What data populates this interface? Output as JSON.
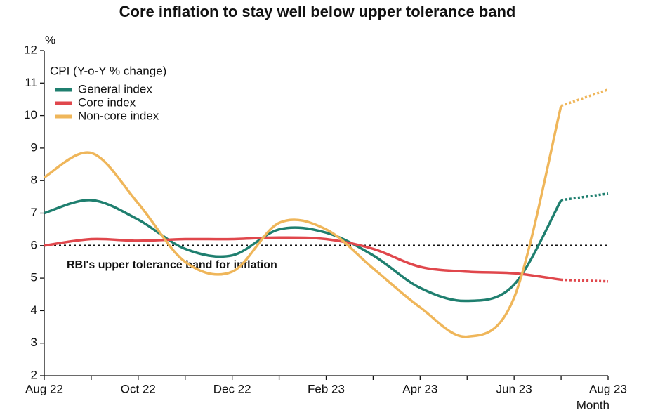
{
  "chart_data": {
    "type": "line",
    "title": "Core inflation to stay well below upper tolerance band",
    "y_label": "%",
    "x_label": "Month",
    "legend_title": "CPI (Y-o-Y % change)",
    "legend_position": "upper left",
    "categories": [
      "Aug 22",
      null,
      "Oct 22",
      null,
      "Dec 22",
      null,
      "Feb 23",
      null,
      "Apr 23",
      null,
      "Jun 23",
      null,
      "Aug 23"
    ],
    "series": [
      {
        "name": "General index",
        "color": "#1f7f6f",
        "values": [
          7.0,
          7.4,
          6.8,
          5.9,
          5.7,
          6.5,
          6.4,
          5.7,
          4.7,
          4.3,
          4.8,
          7.4,
          7.6
        ]
      },
      {
        "name": "Core index",
        "color": "#e0474c",
        "values": [
          6.0,
          6.2,
          6.15,
          6.2,
          6.2,
          6.25,
          6.2,
          5.9,
          5.35,
          5.2,
          5.15,
          4.95,
          4.9
        ]
      },
      {
        "name": "Non-core index",
        "color": "#efb65a",
        "values": [
          8.1,
          8.85,
          7.3,
          5.5,
          5.2,
          6.7,
          6.5,
          5.3,
          4.1,
          3.2,
          4.4,
          10.3,
          10.8
        ]
      }
    ],
    "dotted_last_segment": true,
    "reference_line": {
      "value": 6,
      "label": "RBI's upper tolerance band for inflation"
    },
    "ylim": [
      2,
      12
    ],
    "yticks": [
      2,
      3,
      4,
      5,
      6,
      7,
      8,
      9,
      10,
      11,
      12
    ],
    "grid": false
  }
}
